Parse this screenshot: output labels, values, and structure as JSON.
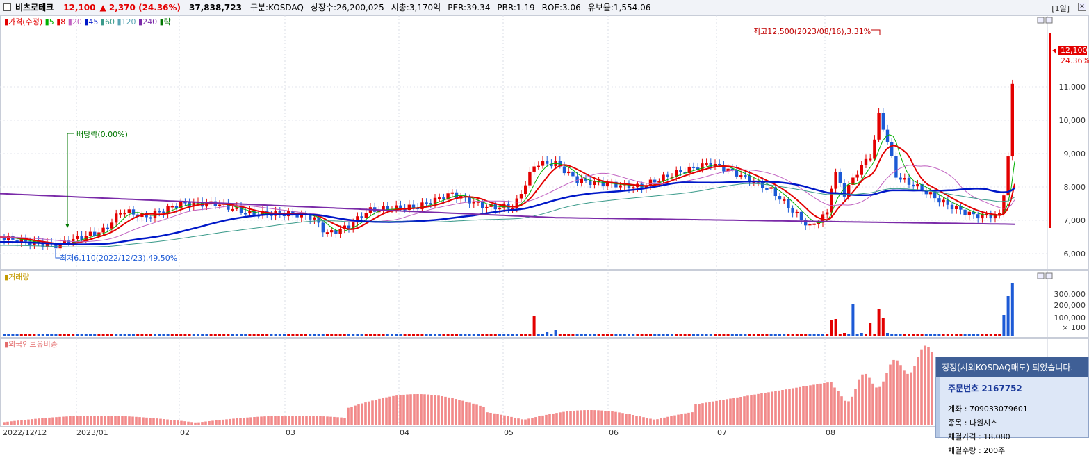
{
  "header": {
    "name": "비츠로테크",
    "price": "12,100",
    "change": "▲ 2,370",
    "change_pct": "(24.36%)",
    "volume": "37,838,723",
    "market": "구분:KOSDAQ",
    "listed": "상장수:26,200,025",
    "cap": "시총:3,170억",
    "per": "PER:39.34",
    "pbr": "PBR:1.19",
    "roe": "ROE:3.06",
    "retention": "유보율:1,554.06",
    "period": "[1일]"
  },
  "legend": {
    "price": "가격(수정)",
    "ma5": "5",
    "ma8": "8",
    "ma20": "20",
    "ma45": "45",
    "ma60": "60",
    "ma120": "120",
    "ma240": "240",
    "drop": "락",
    "volume": "거래량",
    "foreign": "외국인보유비중"
  },
  "annotations": {
    "high": "최고12,500(2023/08/16),3.31%",
    "low": "최저6,110(2022/12/23),49.50%",
    "dividend": "배당락(0.00%)",
    "last_price": "12,100",
    "last_pct": "24.36%"
  },
  "price_axis": [
    "6,000",
    "7,000",
    "8,000",
    "9,000",
    "10,000",
    "11,000"
  ],
  "volume_axis": [
    "300,000",
    "200,000",
    "100,000",
    "× 100"
  ],
  "date_axis": [
    "2022/12/12",
    "2023/01",
    "02",
    "03",
    "04",
    "05",
    "06",
    "07",
    "08"
  ],
  "colors": {
    "up": "#e30000",
    "down": "#1c5ad6",
    "ma5": "#00b000",
    "ma8": "#e30000",
    "ma20": "#c060c0",
    "ma45": "#0018c8",
    "ma60": "#3a9a8a",
    "ma240": "#7a2aa8",
    "foreign_bar": "#f28a8a"
  },
  "popup": {
    "title": "정정(시외KOSDAQ매도) 되었습니다.",
    "order_no": "주문번호 2167752",
    "account": "계좌 : 709033079601",
    "item": "종목 : 다원시스",
    "fill_price": "체결가격 : 18,080",
    "fill_qty": "체결수량 : 200주"
  }
}
